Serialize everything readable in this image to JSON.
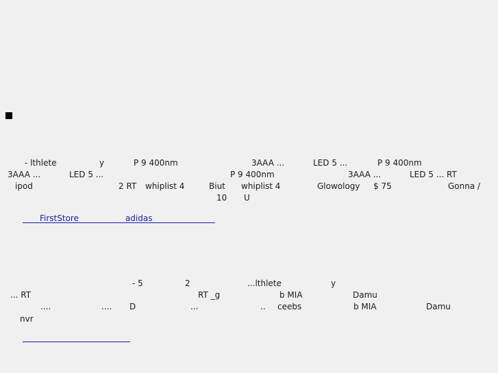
{
  "section1": {
    "row1": [
      "- lthlete",
      "y",
      "P  9 400nm",
      "3AAA ...",
      "LED 5 ...",
      "P  9 400nm"
    ],
    "row2": [
      "3AAA ...",
      "LED 5 ...",
      "P  9 400nm",
      "3AAA ...",
      "LED 5 ... RT"
    ],
    "row3": [
      "ipod",
      "2 RT",
      "whiplist 4",
      "Biut",
      "whiplist 4",
      "Glowology",
      "$ 75",
      "Gonna /"
    ],
    "row4": [
      "10",
      "U"
    ],
    "links": [
      "FirstStore",
      "adidas"
    ]
  },
  "section2": {
    "row1": [
      "- 5",
      "2",
      "...lthlete",
      "y"
    ],
    "row2": [
      "... RT",
      "RT _g",
      "b MIA",
      "Damu"
    ],
    "row3": [
      "....",
      "....",
      "D",
      "...",
      "..",
      "ceebs",
      "b MIA",
      "Damu"
    ],
    "row4": [
      "nvr"
    ]
  }
}
